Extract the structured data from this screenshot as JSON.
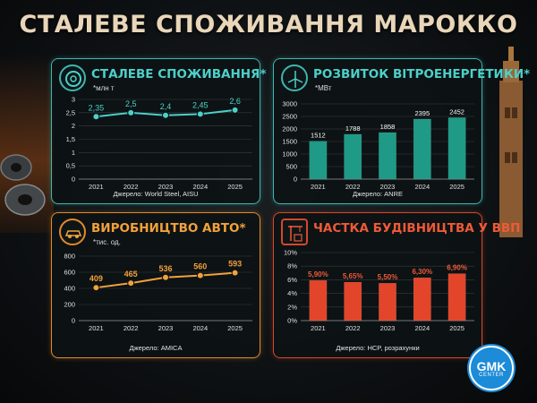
{
  "title": "СТАЛЕВЕ СПОЖИВАННЯ МАРОККО",
  "logo": {
    "line1": "GMK",
    "line2": "CENTER"
  },
  "panels": [
    {
      "title": "СТАЛЕВЕ СПОЖИВАННЯ*",
      "unit": "*млн т",
      "source": "Джерело: World Steel, AISU",
      "accent": "#4dd0c9"
    },
    {
      "title": "РОЗВИТОК ВІТРОЕНЕРГЕТИКИ*",
      "unit": "*МВт",
      "source": "Джерело: ANRE",
      "accent": "#3fb5a2"
    },
    {
      "title": "ВИРОБНИЦТВО АВТО*",
      "unit": "*тис. од.",
      "source": "Джерело: AMICA",
      "accent": "#f2a13b"
    },
    {
      "title": "ЧАСТКА БУДІВНИЦТВА У ВВП",
      "unit": "",
      "source": "Джерело: HCP, розрахунки",
      "accent": "#e2452a"
    }
  ],
  "chart_data": [
    {
      "type": "line",
      "categories": [
        "2021",
        "2022",
        "2023",
        "2024",
        "2025"
      ],
      "values": [
        2.35,
        2.5,
        2.4,
        2.45,
        2.6
      ],
      "value_labels": [
        "2,35",
        "2,5",
        "2,4",
        "2,45",
        "2,6"
      ],
      "ylim": [
        0,
        3
      ],
      "yticks": [
        0,
        0.5,
        1,
        1.5,
        2,
        2.5,
        3
      ],
      "ytick_labels": [
        "0",
        "0,5",
        "1",
        "1,5",
        "2",
        "2,5",
        "3"
      ],
      "color": "#4dd0c9",
      "grid": true
    },
    {
      "type": "bar",
      "categories": [
        "2021",
        "2022",
        "2023",
        "2024",
        "2025"
      ],
      "values": [
        1512,
        1788,
        1858,
        2395,
        2452
      ],
      "value_labels": [
        "1512",
        "1788",
        "1858",
        "2395",
        "2452"
      ],
      "ylim": [
        0,
        3000
      ],
      "yticks": [
        0,
        500,
        1000,
        1500,
        2000,
        2500,
        3000
      ],
      "ytick_labels": [
        "0",
        "500",
        "1000",
        "1500",
        "2000",
        "2500",
        "3000"
      ],
      "color": "#1e9a86",
      "grid": true
    },
    {
      "type": "line",
      "categories": [
        "2021",
        "2022",
        "2023",
        "2024",
        "2025"
      ],
      "values": [
        409,
        465,
        536,
        560,
        593
      ],
      "value_labels": [
        "409",
        "465",
        "536",
        "560",
        "593"
      ],
      "ylim": [
        0,
        800
      ],
      "yticks": [
        0,
        200,
        400,
        600,
        800
      ],
      "ytick_labels": [
        "0",
        "200",
        "400",
        "600",
        "800"
      ],
      "color": "#f2a13b",
      "grid": true
    },
    {
      "type": "bar",
      "categories": [
        "2021",
        "2022",
        "2023",
        "2024",
        "2025"
      ],
      "values": [
        5.9,
        5.65,
        5.5,
        6.3,
        6.9
      ],
      "value_labels": [
        "5,90%",
        "5,65%",
        "5,50%",
        "6,30%",
        "6,90%"
      ],
      "ylim": [
        0,
        10
      ],
      "yticks": [
        0,
        2,
        4,
        6,
        8,
        10
      ],
      "ytick_labels": [
        "0%",
        "2%",
        "4%",
        "6%",
        "8%",
        "10%"
      ],
      "color": "#e2452a",
      "grid": true
    }
  ]
}
